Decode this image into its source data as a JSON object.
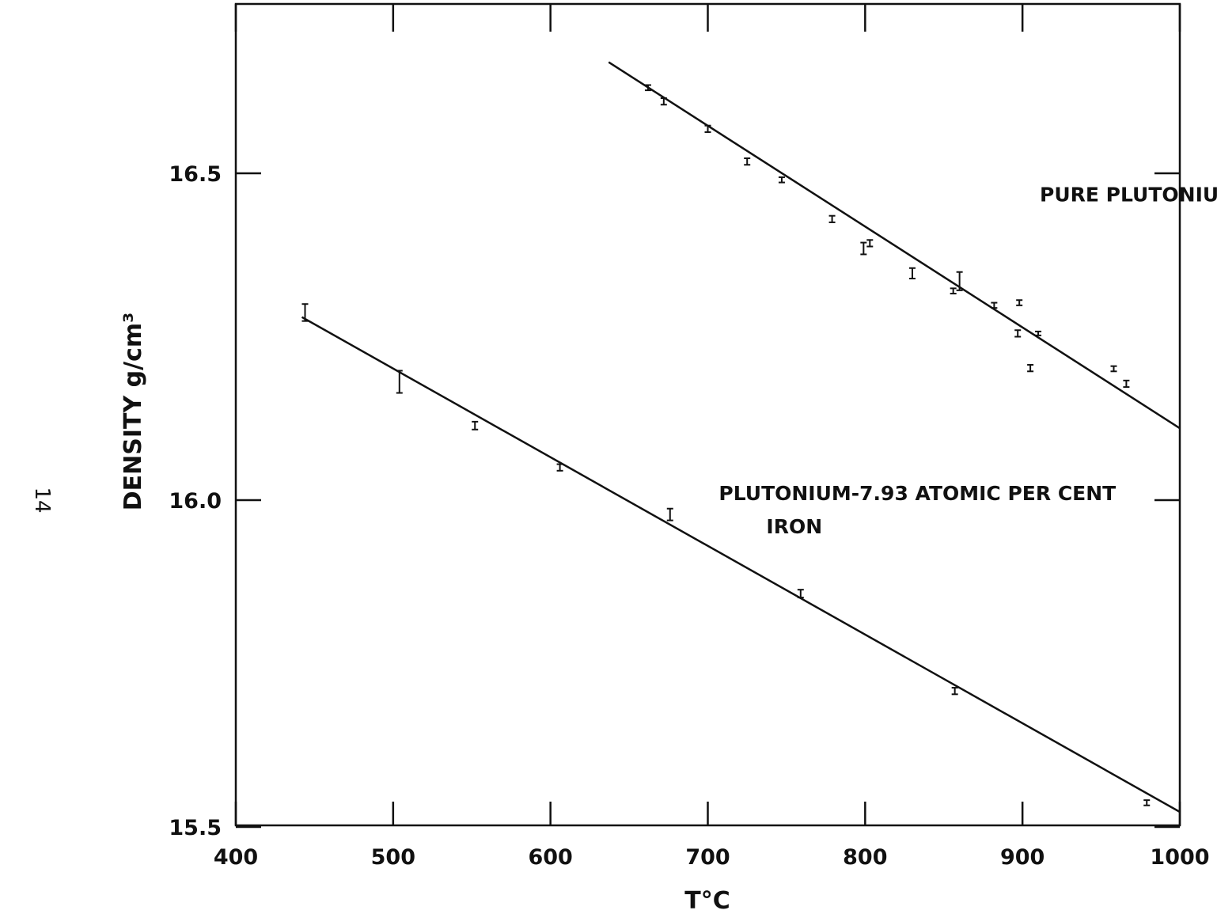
{
  "page_mark": "14",
  "chart_data": {
    "type": "scatter",
    "xlabel": "T°C",
    "ylabel": "DENSITY g/cm³",
    "xlim": [
      400,
      1000
    ],
    "ylim": [
      15.5,
      17.0
    ],
    "x_ticks": [
      400,
      500,
      600,
      700,
      800,
      900,
      1000
    ],
    "x_tick_labels": [
      "400",
      "500",
      "600",
      "700",
      "800",
      "900",
      "1000"
    ],
    "y_ticks": [
      15.5,
      16.0,
      16.5
    ],
    "y_tick_labels": [
      "15.5",
      "16.0",
      "16.5"
    ],
    "grid": false,
    "series": [
      {
        "name": "PURE PLUTONIUM",
        "label_lines": [
          "PURE PLUTONIUM"
        ],
        "label_anchor": {
          "x": 911,
          "y": 16.457
        },
        "points": [
          {
            "x": 662,
            "y": 16.631,
            "err": 0.004
          },
          {
            "x": 672,
            "y": 16.61,
            "err": 0.005
          },
          {
            "x": 700,
            "y": 16.568,
            "err": 0.005
          },
          {
            "x": 725,
            "y": 16.518,
            "err": 0.005
          },
          {
            "x": 747,
            "y": 16.49,
            "err": 0.004
          },
          {
            "x": 779,
            "y": 16.43,
            "err": 0.005
          },
          {
            "x": 799,
            "y": 16.385,
            "err": 0.009
          },
          {
            "x": 803,
            "y": 16.393,
            "err": 0.005
          },
          {
            "x": 830,
            "y": 16.347,
            "err": 0.008
          },
          {
            "x": 856,
            "y": 16.32,
            "err": 0.004
          },
          {
            "x": 860,
            "y": 16.335,
            "err": 0.014
          },
          {
            "x": 882,
            "y": 16.298,
            "err": 0.004
          },
          {
            "x": 898,
            "y": 16.302,
            "err": 0.004
          },
          {
            "x": 897,
            "y": 16.255,
            "err": 0.005
          },
          {
            "x": 910,
            "y": 16.255,
            "err": 0.003
          },
          {
            "x": 905,
            "y": 16.202,
            "err": 0.005
          },
          {
            "x": 958,
            "y": 16.201,
            "err": 0.004
          },
          {
            "x": 966,
            "y": 16.178,
            "err": 0.005
          }
        ],
        "fit_line": {
          "x": [
            637,
            1000
          ],
          "y": [
            16.67,
            16.11
          ]
        }
      },
      {
        "name": "PLUTONIUM-7.93 ATOMIC PER CENT IRON",
        "label_lines": [
          "PLUTONIUM-7.93 ATOMIC PER CENT",
          "IRON"
        ],
        "label_anchor": {
          "x": 707,
          "y": 16.0
        },
        "points": [
          {
            "x": 444,
            "y": 16.287,
            "err": 0.013
          },
          {
            "x": 504,
            "y": 16.181,
            "err": 0.017
          },
          {
            "x": 552,
            "y": 16.114,
            "err": 0.006
          },
          {
            "x": 606,
            "y": 16.05,
            "err": 0.005
          },
          {
            "x": 676,
            "y": 15.978,
            "err": 0.009
          },
          {
            "x": 759,
            "y": 15.857,
            "err": 0.006
          },
          {
            "x": 857,
            "y": 15.708,
            "err": 0.005
          },
          {
            "x": 979,
            "y": 15.537,
            "err": 0.004
          }
        ],
        "fit_line": {
          "x": [
            442,
            1000
          ],
          "y": [
            16.28,
            15.523
          ]
        }
      }
    ]
  }
}
